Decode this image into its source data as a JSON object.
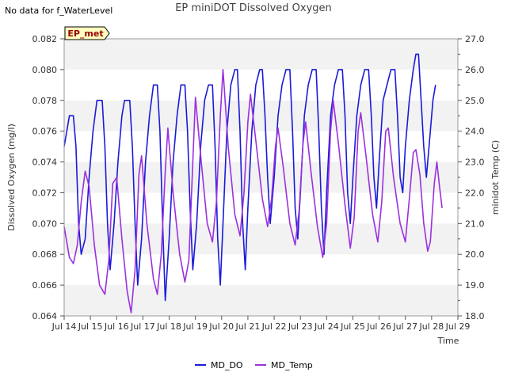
{
  "notice": "No data for f_WaterLevel",
  "chart_data": {
    "type": "line",
    "title": "EP miniDOT Dissolved Oxygen",
    "xlabel": "Time",
    "ylabel": "Dissolved Oxygen (mg/l)",
    "y2label": "minidot Temp (C)",
    "site_badge": "EP_met",
    "x_ticks": [
      "Jul 14",
      "Jul 15",
      "Jul 16",
      "Jul 17",
      "Jul 18",
      "Jul 19",
      "Jul 20",
      "Jul 21",
      "Jul 22",
      "Jul 23",
      "Jul 24",
      "Jul 25",
      "Jul 26",
      "Jul 27",
      "Jul 28",
      "Jul 29"
    ],
    "xlim": [
      14,
      29
    ],
    "ylim": [
      0.064,
      0.082
    ],
    "y_ticks": [
      "0.064",
      "0.066",
      "0.068",
      "0.070",
      "0.072",
      "0.074",
      "0.076",
      "0.078",
      "0.080",
      "0.082"
    ],
    "y2lim": [
      18.0,
      27.0
    ],
    "y2_ticks": [
      "18.0",
      "19.0",
      "20.0",
      "21.0",
      "22.0",
      "23.0",
      "24.0",
      "25.0",
      "26.0",
      "27.0"
    ],
    "grid": "horizontal bands",
    "legend_position": "bottom",
    "series": [
      {
        "name": "MD_DO",
        "axis": "left",
        "color": "#1a1adb",
        "points": [
          [
            14.0,
            0.075
          ],
          [
            14.1,
            0.076
          ],
          [
            14.2,
            0.077
          ],
          [
            14.35,
            0.077
          ],
          [
            14.45,
            0.075
          ],
          [
            14.55,
            0.07
          ],
          [
            14.65,
            0.068
          ],
          [
            14.8,
            0.069
          ],
          [
            14.95,
            0.073
          ],
          [
            15.1,
            0.076
          ],
          [
            15.25,
            0.078
          ],
          [
            15.45,
            0.078
          ],
          [
            15.55,
            0.075
          ],
          [
            15.65,
            0.07
          ],
          [
            15.75,
            0.067
          ],
          [
            15.9,
            0.07
          ],
          [
            16.05,
            0.074
          ],
          [
            16.2,
            0.077
          ],
          [
            16.3,
            0.078
          ],
          [
            16.5,
            0.078
          ],
          [
            16.6,
            0.075
          ],
          [
            16.7,
            0.07
          ],
          [
            16.8,
            0.066
          ],
          [
            16.95,
            0.069
          ],
          [
            17.1,
            0.074
          ],
          [
            17.25,
            0.077
          ],
          [
            17.4,
            0.079
          ],
          [
            17.55,
            0.079
          ],
          [
            17.65,
            0.076
          ],
          [
            17.75,
            0.07
          ],
          [
            17.85,
            0.065
          ],
          [
            18.0,
            0.069
          ],
          [
            18.15,
            0.074
          ],
          [
            18.3,
            0.077
          ],
          [
            18.45,
            0.079
          ],
          [
            18.6,
            0.079
          ],
          [
            18.7,
            0.076
          ],
          [
            18.8,
            0.071
          ],
          [
            18.9,
            0.067
          ],
          [
            19.05,
            0.07
          ],
          [
            19.2,
            0.075
          ],
          [
            19.35,
            0.078
          ],
          [
            19.5,
            0.079
          ],
          [
            19.65,
            0.079
          ],
          [
            19.75,
            0.075
          ],
          [
            19.85,
            0.069
          ],
          [
            19.95,
            0.066
          ],
          [
            20.05,
            0.07
          ],
          [
            20.2,
            0.076
          ],
          [
            20.35,
            0.079
          ],
          [
            20.5,
            0.08
          ],
          [
            20.6,
            0.08
          ],
          [
            20.7,
            0.076
          ],
          [
            20.8,
            0.07
          ],
          [
            20.9,
            0.067
          ],
          [
            21.0,
            0.071
          ],
          [
            21.15,
            0.076
          ],
          [
            21.3,
            0.079
          ],
          [
            21.45,
            0.08
          ],
          [
            21.55,
            0.08
          ],
          [
            21.65,
            0.077
          ],
          [
            21.75,
            0.073
          ],
          [
            21.85,
            0.07
          ],
          [
            22.0,
            0.073
          ],
          [
            22.15,
            0.077
          ],
          [
            22.3,
            0.079
          ],
          [
            22.45,
            0.08
          ],
          [
            22.6,
            0.08
          ],
          [
            22.7,
            0.076
          ],
          [
            22.8,
            0.071
          ],
          [
            22.9,
            0.069
          ],
          [
            23.0,
            0.072
          ],
          [
            23.15,
            0.077
          ],
          [
            23.3,
            0.079
          ],
          [
            23.45,
            0.08
          ],
          [
            23.6,
            0.08
          ],
          [
            23.7,
            0.076
          ],
          [
            23.8,
            0.071
          ],
          [
            23.9,
            0.068
          ],
          [
            24.0,
            0.072
          ],
          [
            24.15,
            0.077
          ],
          [
            24.3,
            0.079
          ],
          [
            24.45,
            0.08
          ],
          [
            24.6,
            0.08
          ],
          [
            24.7,
            0.077
          ],
          [
            24.8,
            0.072
          ],
          [
            24.9,
            0.07
          ],
          [
            25.0,
            0.073
          ],
          [
            25.15,
            0.077
          ],
          [
            25.3,
            0.079
          ],
          [
            25.45,
            0.08
          ],
          [
            25.6,
            0.08
          ],
          [
            25.7,
            0.077
          ],
          [
            25.8,
            0.073
          ],
          [
            25.9,
            0.071
          ],
          [
            26.0,
            0.074
          ],
          [
            26.15,
            0.078
          ],
          [
            26.3,
            0.079
          ],
          [
            26.45,
            0.08
          ],
          [
            26.6,
            0.08
          ],
          [
            26.7,
            0.077
          ],
          [
            26.8,
            0.073
          ],
          [
            26.9,
            0.072
          ],
          [
            27.0,
            0.075
          ],
          [
            27.15,
            0.078
          ],
          [
            27.3,
            0.08
          ],
          [
            27.4,
            0.081
          ],
          [
            27.5,
            0.081
          ],
          [
            27.6,
            0.078
          ],
          [
            27.7,
            0.075
          ],
          [
            27.8,
            0.073
          ],
          [
            27.9,
            0.075
          ],
          [
            28.05,
            0.078
          ],
          [
            28.15,
            0.079
          ]
        ]
      },
      {
        "name": "MD_Temp",
        "axis": "right",
        "color": "#9b30e0",
        "points": [
          [
            14.0,
            20.9
          ],
          [
            14.1,
            20.4
          ],
          [
            14.2,
            19.9
          ],
          [
            14.35,
            19.7
          ],
          [
            14.5,
            20.3
          ],
          [
            14.65,
            21.7
          ],
          [
            14.8,
            22.7
          ],
          [
            14.95,
            22.2
          ],
          [
            15.15,
            20.3
          ],
          [
            15.35,
            19.0
          ],
          [
            15.55,
            18.7
          ],
          [
            15.7,
            19.8
          ],
          [
            15.85,
            22.3
          ],
          [
            16.0,
            22.5
          ],
          [
            16.2,
            20.5
          ],
          [
            16.4,
            18.8
          ],
          [
            16.55,
            18.1
          ],
          [
            16.7,
            19.5
          ],
          [
            16.85,
            22.6
          ],
          [
            16.95,
            23.2
          ],
          [
            17.15,
            21.0
          ],
          [
            17.4,
            19.2
          ],
          [
            17.55,
            18.7
          ],
          [
            17.7,
            20.0
          ],
          [
            17.85,
            22.7
          ],
          [
            17.95,
            24.1
          ],
          [
            18.15,
            22.0
          ],
          [
            18.4,
            20.0
          ],
          [
            18.6,
            19.1
          ],
          [
            18.75,
            19.8
          ],
          [
            18.9,
            23.0
          ],
          [
            19.0,
            25.1
          ],
          [
            19.2,
            23.2
          ],
          [
            19.45,
            21.0
          ],
          [
            19.65,
            20.4
          ],
          [
            19.8,
            21.7
          ],
          [
            19.95,
            24.5
          ],
          [
            20.05,
            26.0
          ],
          [
            20.25,
            23.5
          ],
          [
            20.5,
            21.3
          ],
          [
            20.7,
            20.6
          ],
          [
            20.85,
            22.0
          ],
          [
            21.0,
            24.3
          ],
          [
            21.1,
            25.2
          ],
          [
            21.3,
            23.7
          ],
          [
            21.55,
            21.8
          ],
          [
            21.75,
            20.9
          ],
          [
            21.9,
            21.8
          ],
          [
            22.05,
            23.5
          ],
          [
            22.15,
            24.1
          ],
          [
            22.35,
            22.8
          ],
          [
            22.6,
            21.0
          ],
          [
            22.8,
            20.3
          ],
          [
            22.95,
            21.4
          ],
          [
            23.1,
            23.6
          ],
          [
            23.2,
            24.3
          ],
          [
            23.4,
            22.7
          ],
          [
            23.65,
            20.9
          ],
          [
            23.85,
            19.9
          ],
          [
            24.0,
            21.0
          ],
          [
            24.15,
            24.0
          ],
          [
            24.25,
            25.0
          ],
          [
            24.45,
            23.6
          ],
          [
            24.7,
            21.6
          ],
          [
            24.9,
            20.2
          ],
          [
            25.05,
            21.2
          ],
          [
            25.2,
            24.0
          ],
          [
            25.3,
            24.6
          ],
          [
            25.5,
            23.2
          ],
          [
            25.75,
            21.3
          ],
          [
            25.95,
            20.4
          ],
          [
            26.1,
            21.7
          ],
          [
            26.25,
            24.0
          ],
          [
            26.35,
            24.1
          ],
          [
            26.55,
            22.5
          ],
          [
            26.8,
            21.0
          ],
          [
            27.0,
            20.4
          ],
          [
            27.15,
            21.8
          ],
          [
            27.3,
            23.3
          ],
          [
            27.4,
            23.4
          ],
          [
            27.55,
            22.6
          ],
          [
            27.7,
            21.0
          ],
          [
            27.85,
            20.1
          ],
          [
            27.95,
            20.4
          ],
          [
            28.1,
            22.3
          ],
          [
            28.2,
            23.0
          ],
          [
            28.3,
            22.2
          ],
          [
            28.4,
            21.5
          ]
        ]
      }
    ]
  }
}
